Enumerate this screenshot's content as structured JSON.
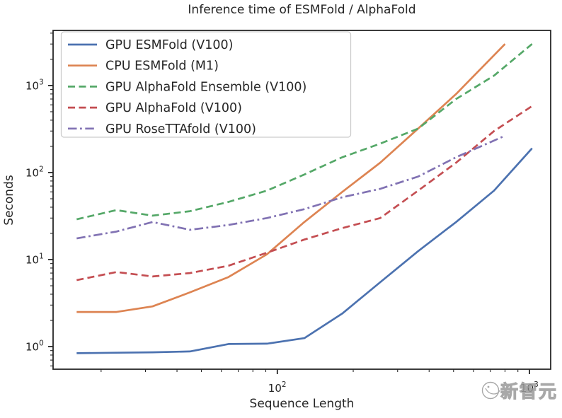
{
  "title": "Inference time of ESMFold / AlphaFold",
  "watermark": {
    "text": "新智元",
    "color": "#9a9a9a"
  },
  "style": {
    "text_color": "#262626",
    "spine_color": "#262626",
    "legend_border_color": "#cccccc",
    "background": "#ffffff"
  },
  "chart_data": {
    "type": "line",
    "title": "Inference time of ESMFold / AlphaFold",
    "xlabel": "Sequence Length",
    "ylabel": "Seconds",
    "x_scale": "log",
    "y_scale": "log",
    "xlim": [
      12.9,
      1214
    ],
    "ylim": [
      0.55,
      4300
    ],
    "grid": false,
    "legend_position": "upper left",
    "x_ticks": [
      {
        "value": 100,
        "base": "10",
        "exp": "2"
      },
      {
        "value": 1000,
        "base": "10",
        "exp": "3"
      }
    ],
    "y_ticks": [
      {
        "value": 1,
        "base": "10",
        "exp": "0"
      },
      {
        "value": 10,
        "base": "10",
        "exp": "1"
      },
      {
        "value": 100,
        "base": "10",
        "exp": "2"
      },
      {
        "value": 1000,
        "base": "10",
        "exp": "3"
      }
    ],
    "series": [
      {
        "name": "GPU ESMFold (V100)",
        "color": "#4C72B0",
        "style": "solid",
        "x": [
          16,
          23,
          32,
          45,
          64,
          91,
          128,
          181,
          256,
          362,
          512,
          724,
          1024
        ],
        "y": [
          0.84,
          0.85,
          0.86,
          0.88,
          1.07,
          1.08,
          1.25,
          2.4,
          5.5,
          12.5,
          27,
          62,
          190
        ]
      },
      {
        "name": "CPU ESMFold (M1)",
        "color": "#DD8452",
        "style": "solid",
        "x": [
          16,
          23,
          32,
          45,
          64,
          91,
          128,
          181,
          256,
          362,
          512,
          800
        ],
        "y": [
          2.5,
          2.5,
          2.9,
          4.2,
          6.3,
          11.5,
          27,
          60,
          130,
          320,
          800,
          3000
        ]
      },
      {
        "name": "GPU AlphaFold Ensemble (V100)",
        "color": "#55A868",
        "style": "dashed",
        "x": [
          16,
          23,
          32,
          45,
          64,
          91,
          128,
          181,
          256,
          362,
          512,
          724,
          1024
        ],
        "y": [
          29,
          37,
          32,
          36,
          46,
          62,
          95,
          150,
          215,
          320,
          700,
          1300,
          3000
        ]
      },
      {
        "name": "GPU AlphaFold (V100)",
        "color": "#C44E52",
        "style": "dashed",
        "x": [
          16,
          23,
          32,
          45,
          64,
          91,
          128,
          181,
          256,
          362,
          512,
          724,
          1024
        ],
        "y": [
          5.8,
          7.2,
          6.4,
          7.0,
          8.5,
          12,
          17,
          23,
          30,
          62,
          130,
          300,
          580
        ]
      },
      {
        "name": "GPU RoseTTAfold (V100)",
        "color": "#8172B3",
        "style": "dashdot",
        "x": [
          16,
          23,
          32,
          45,
          64,
          91,
          128,
          181,
          256,
          362,
          512,
          800
        ],
        "y": [
          17.5,
          21,
          27,
          22,
          25,
          30,
          38,
          52,
          65,
          90,
          150,
          265
        ]
      }
    ]
  }
}
